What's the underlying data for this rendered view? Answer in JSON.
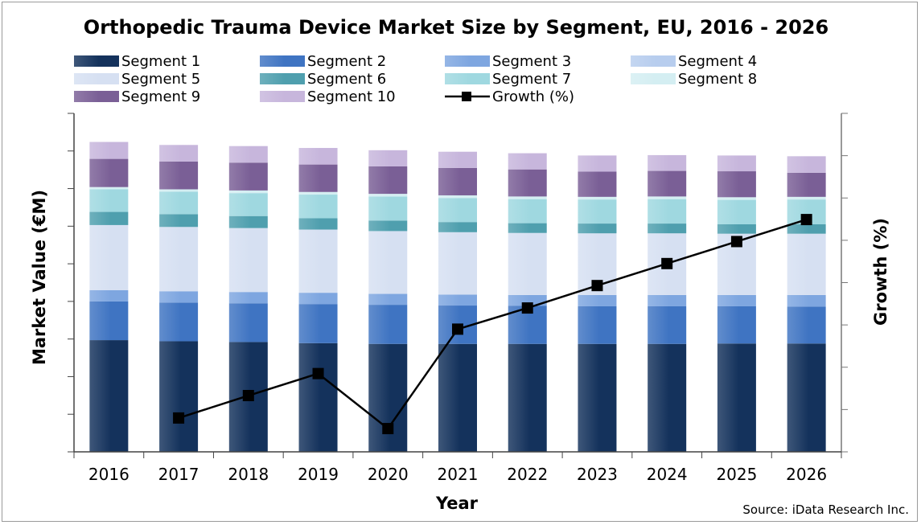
{
  "chart_data": {
    "type": "bar",
    "stacked": true,
    "title": "Orthopedic Trauma Device Market Size by Segment, EU, 2016 - 2026",
    "xlabel": "Year",
    "ylabel": "Market Value (€M)",
    "y2label": "Growth (%)",
    "source": "Source: iData Research Inc.",
    "categories": [
      "2016",
      "2017",
      "2018",
      "2019",
      "2020",
      "2021",
      "2022",
      "2023",
      "2024",
      "2025",
      "2026"
    ],
    "ylim": [
      0,
      9
    ],
    "y2lim": [
      -1,
      7
    ],
    "grid": false,
    "legend_position": "top",
    "series": [
      {
        "name": "Segment 1",
        "color": "#14325c",
        "values": [
          2.97,
          2.94,
          2.92,
          2.89,
          2.87,
          2.87,
          2.87,
          2.87,
          2.87,
          2.88,
          2.88
        ]
      },
      {
        "name": "Segment 2",
        "color": "#3f74c2",
        "values": [
          1.03,
          1.03,
          1.03,
          1.04,
          1.04,
          1.02,
          1.01,
          1.0,
          1.0,
          0.99,
          0.98
        ]
      },
      {
        "name": "Segment 3",
        "color": "#7ea6e0",
        "values": [
          0.3,
          0.3,
          0.3,
          0.3,
          0.29,
          0.29,
          0.29,
          0.3,
          0.3,
          0.3,
          0.31
        ]
      },
      {
        "name": "Segment 4",
        "color": "#b7cdee",
        "values": [
          0.0,
          0.0,
          0.0,
          0.0,
          0.0,
          0.0,
          0.0,
          0.0,
          0.0,
          0.0,
          0.0
        ]
      },
      {
        "name": "Segment 5",
        "color": "#d6e0f2",
        "values": [
          1.73,
          1.71,
          1.7,
          1.68,
          1.67,
          1.66,
          1.65,
          1.64,
          1.64,
          1.63,
          1.63
        ]
      },
      {
        "name": "Segment 6",
        "color": "#4f9fae",
        "values": [
          0.35,
          0.34,
          0.32,
          0.3,
          0.28,
          0.27,
          0.26,
          0.26,
          0.26,
          0.25,
          0.25
        ]
      },
      {
        "name": "Segment 7",
        "color": "#9fd8e0",
        "values": [
          0.6,
          0.6,
          0.61,
          0.63,
          0.64,
          0.64,
          0.64,
          0.64,
          0.65,
          0.65,
          0.66
        ]
      },
      {
        "name": "Segment 8",
        "color": "#d4eef2",
        "values": [
          0.06,
          0.06,
          0.07,
          0.07,
          0.07,
          0.07,
          0.07,
          0.07,
          0.07,
          0.07,
          0.07
        ]
      },
      {
        "name": "Segment 9",
        "color": "#7a5f96",
        "values": [
          0.75,
          0.74,
          0.74,
          0.73,
          0.73,
          0.73,
          0.72,
          0.67,
          0.68,
          0.69,
          0.64
        ]
      },
      {
        "name": "Segment 10",
        "color": "#c7b6dc",
        "values": [
          0.45,
          0.44,
          0.44,
          0.44,
          0.43,
          0.43,
          0.43,
          0.43,
          0.42,
          0.42,
          0.44
        ]
      }
    ],
    "line_series": {
      "name": "Growth (%)",
      "color": "#000000",
      "axis": "right",
      "x": [
        "2017",
        "2018",
        "2019",
        "2020",
        "2021",
        "2022",
        "2023",
        "2024",
        "2025",
        "2026"
      ],
      "values": [
        -0.2,
        0.33,
        0.85,
        -0.45,
        1.9,
        2.4,
        2.93,
        3.45,
        3.97,
        4.49
      ]
    }
  }
}
